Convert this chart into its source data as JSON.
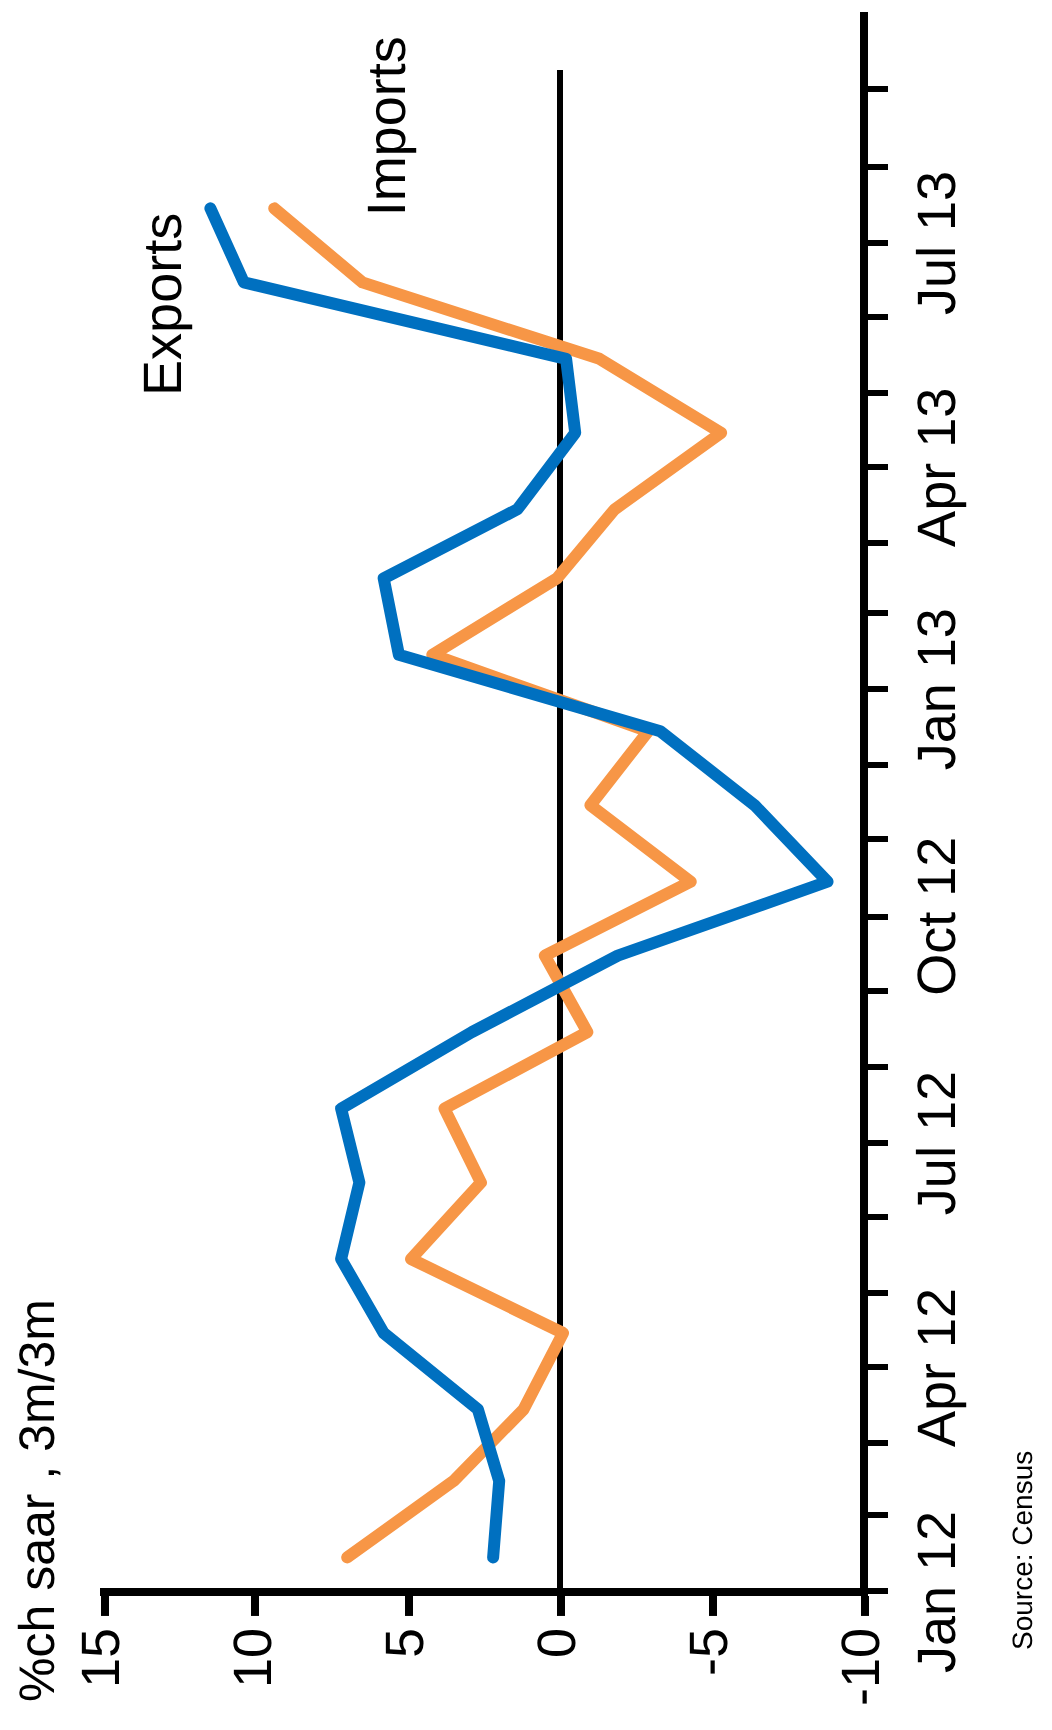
{
  "chart_data": {
    "type": "line",
    "orientation": "horizontal",
    "ylabel": "%ch saar , 3m/3m",
    "annotations": [
      "Source: Census"
    ],
    "x": [
      "2012-01-15",
      "2012-02-15",
      "2012-03-15",
      "2012-04-15",
      "2012-05-15",
      "2012-06-15",
      "2012-07-15",
      "2012-08-15",
      "2012-09-15",
      "2012-10-15",
      "2012-11-15",
      "2012-12-15",
      "2013-01-15",
      "2013-02-15",
      "2013-03-15",
      "2013-04-15",
      "2013-05-15",
      "2013-06-15",
      "2013-07-15"
    ],
    "ylim": [
      "2012-01-01",
      "2013-10-01"
    ],
    "yticks": [
      {
        "value": "2012-01",
        "label": "Jan 12"
      },
      {
        "value": "2012-02",
        "label": null
      },
      {
        "value": "2012-03",
        "label": null
      },
      {
        "value": "2012-04",
        "label": "Apr 12"
      },
      {
        "value": "2012-05",
        "label": null
      },
      {
        "value": "2012-06",
        "label": null
      },
      {
        "value": "2012-07",
        "label": "Jul 12"
      },
      {
        "value": "2012-08",
        "label": null
      },
      {
        "value": "2012-09",
        "label": null
      },
      {
        "value": "2012-10",
        "label": "Oct 12"
      },
      {
        "value": "2012-11",
        "label": null
      },
      {
        "value": "2012-12",
        "label": null
      },
      {
        "value": "2013-01",
        "label": "Jan 13"
      },
      {
        "value": "2013-02",
        "label": null
      },
      {
        "value": "2013-03",
        "label": null
      },
      {
        "value": "2013-04",
        "label": "Apr 13"
      },
      {
        "value": "2013-05",
        "label": null
      },
      {
        "value": "2013-06",
        "label": null
      },
      {
        "value": "2013-07",
        "label": "Jul 13"
      },
      {
        "value": "2013-08",
        "label": null
      },
      {
        "value": "2013-09",
        "label": null
      }
    ],
    "xlim": [
      15,
      -10
    ],
    "xticks": [
      15,
      10,
      5,
      0,
      -5,
      -10
    ],
    "series": [
      {
        "name": "Exports",
        "color": "#0070c0",
        "values": [
          2.2,
          2.0,
          2.7,
          5.8,
          7.2,
          6.6,
          7.2,
          2.9,
          -1.9,
          -8.8,
          -6.4,
          -3.3,
          5.3,
          5.8,
          1.4,
          -0.5,
          -0.2,
          10.4,
          11.5
        ]
      },
      {
        "name": "Imports",
        "color": "#f79646",
        "values": [
          7.0,
          3.5,
          1.2,
          -0.1,
          4.9,
          2.6,
          3.8,
          -0.9,
          0.5,
          -4.3,
          -1.0,
          -2.9,
          4.2,
          0.1,
          -1.8,
          -5.3,
          -1.3,
          6.5,
          9.4
        ]
      }
    ],
    "ref_lines": [
      {
        "axis": "x",
        "value": 0,
        "color": "#000000"
      }
    ],
    "grid": false,
    "legend": false,
    "marker": "none",
    "line_style": "solid"
  }
}
